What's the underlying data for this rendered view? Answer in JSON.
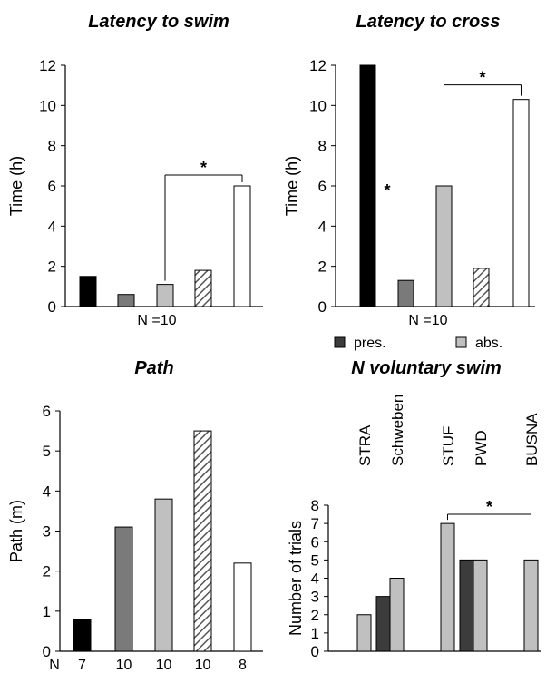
{
  "colors": {
    "black": "#000000",
    "dark": "#7a7a7a",
    "darker": "#3c3c3c",
    "light": "#c0c0c0",
    "white": "#ffffff"
  },
  "chart_data": [
    {
      "type": "bar",
      "title": "Latency to swim",
      "ylabel": "Time (h)",
      "ylim": [
        0,
        12
      ],
      "yticks": [
        "0",
        "2",
        "4",
        "6",
        "8",
        "10",
        "12"
      ],
      "values": [
        1.5,
        0.6,
        1.1,
        1.8,
        6.0
      ],
      "fills": [
        "black",
        "dark",
        "light",
        "hatch",
        "white"
      ],
      "n_label": "N =10",
      "significance": {
        "from": 2,
        "to": 4,
        "label": "*"
      }
    },
    {
      "type": "bar",
      "title": "Latency to cross",
      "ylabel": "Time (h)",
      "ylim": [
        0,
        12
      ],
      "yticks": [
        "0",
        "2",
        "4",
        "6",
        "8",
        "10",
        "12"
      ],
      "values": [
        12.0,
        1.3,
        6.0,
        1.9,
        10.3
      ],
      "fills": [
        "black",
        "dark",
        "light",
        "hatch",
        "white"
      ],
      "n_label": "N =10",
      "significance": {
        "from": 2,
        "to": 4,
        "label": "*"
      },
      "annotation": "*"
    },
    {
      "type": "bar",
      "title": "Path",
      "ylabel": "Path (m)",
      "ylim": [
        0,
        6
      ],
      "yticks": [
        "0",
        "1",
        "2",
        "3",
        "4",
        "5",
        "6"
      ],
      "values": [
        0.8,
        3.1,
        3.8,
        5.5,
        2.2
      ],
      "fills": [
        "black",
        "dark",
        "light",
        "hatch",
        "white"
      ],
      "n_prefix": "N",
      "n_values": [
        "7",
        "10",
        "10",
        "10",
        "8"
      ]
    },
    {
      "type": "bar",
      "title": "N voluntary swim",
      "ylabel": "Number of trials",
      "ylim": [
        0,
        8
      ],
      "yticks": [
        "0",
        "1",
        "2",
        "3",
        "4",
        "5",
        "6",
        "7",
        "8"
      ],
      "categories": [
        "STRA",
        "Schweben",
        "STUF",
        "PWD",
        "BUSNA"
      ],
      "series": [
        {
          "name": "pres.",
          "values": [
            0,
            3,
            0,
            5,
            0
          ]
        },
        {
          "name": "abs.",
          "values": [
            2,
            4,
            7,
            5,
            5
          ]
        }
      ],
      "legend": "top",
      "significance": {
        "from": 2,
        "to": 4,
        "label": "*"
      }
    }
  ]
}
